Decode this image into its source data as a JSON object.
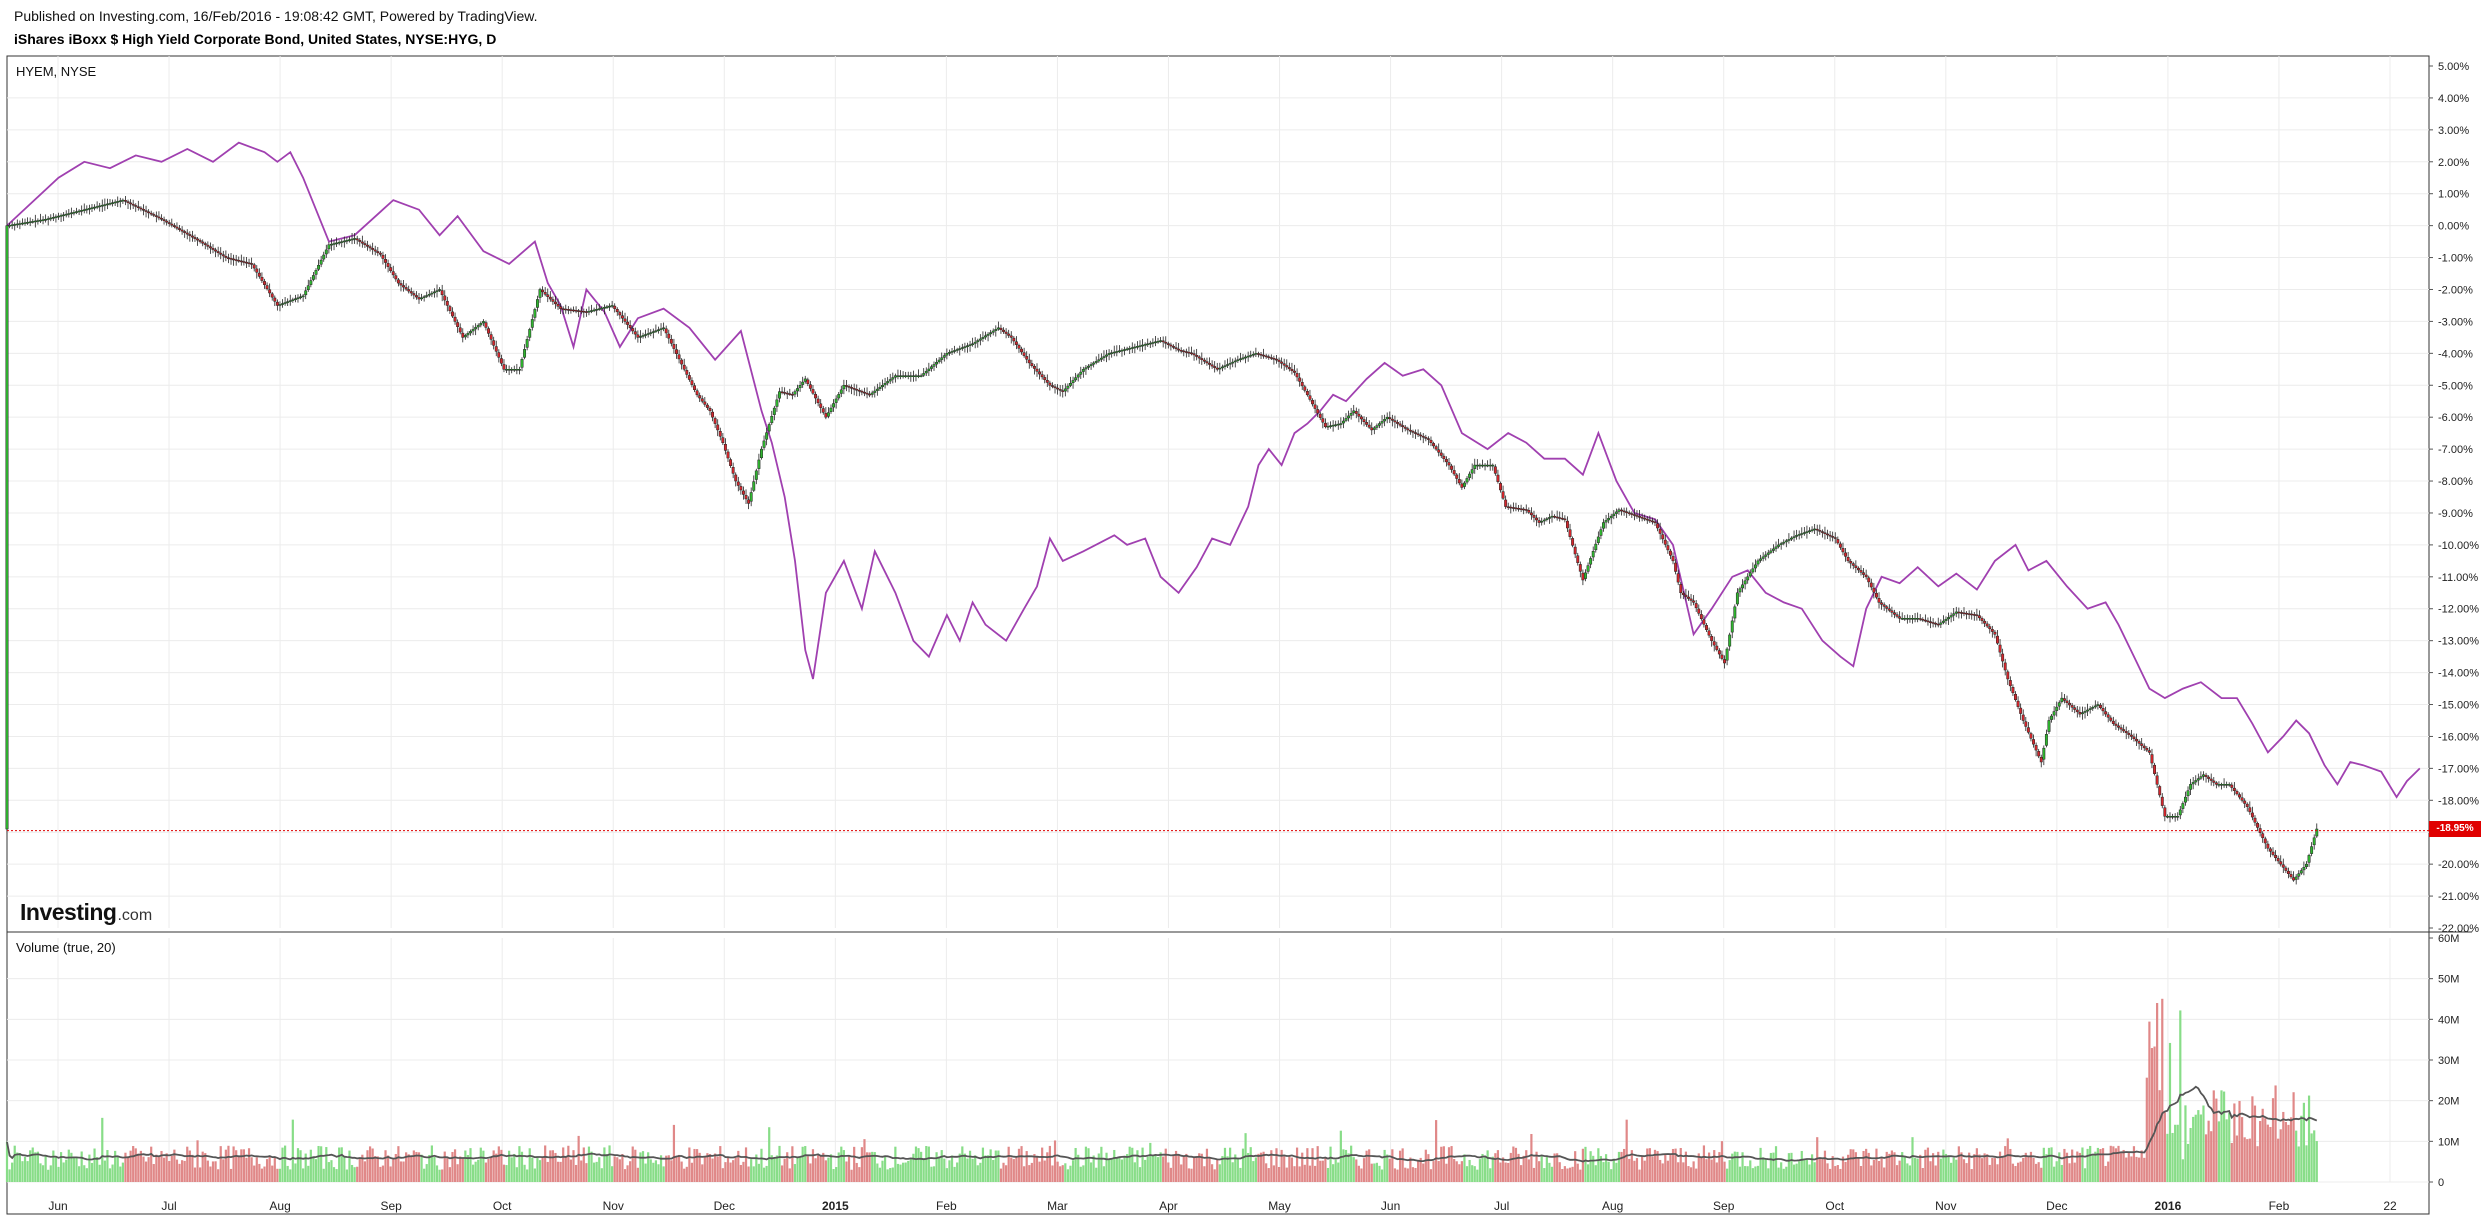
{
  "header": {
    "published": "Published on Investing.com, 16/Feb/2016 - 19:08:42 GMT, Powered by TradingView.",
    "title": "iShares iBoxx $ High Yield Corporate Bond, United States, NYSE:HYG, D"
  },
  "main_pane": {
    "symbol_label": "HYEM, NYSE",
    "current_value_label": "-18.95%"
  },
  "volume_pane": {
    "label": "Volume (true, 20)"
  },
  "logo": {
    "text": "Investing",
    "suffix": ".com"
  },
  "colors": {
    "up": "#2fb52f",
    "down": "#d4262c",
    "comparison_line": "#a040b0",
    "vol_up": "#88dd88",
    "vol_down": "#e08888",
    "volume_ma": "#555555",
    "price_line": "#e00000"
  },
  "chart_data": [
    {
      "type": "line",
      "title": "iShares iBoxx $ High Yield Corporate Bond, United States, NYSE:HYG, D",
      "y_unit": "%",
      "ylim": [
        -22,
        5
      ],
      "y_ticks": [
        "5.00%",
        "4.00%",
        "3.00%",
        "2.00%",
        "1.00%",
        "0.00%",
        "-1.00%",
        "-2.00%",
        "-3.00%",
        "-4.00%",
        "-5.00%",
        "-6.00%",
        "-7.00%",
        "-8.00%",
        "-9.00%",
        "-10.00%",
        "-11.00%",
        "-12.00%",
        "-13.00%",
        "-14.00%",
        "-15.00%",
        "-16.00%",
        "-17.00%",
        "-18.00%",
        "-19.00%",
        "-20.00%",
        "-21.00%",
        "-22.00%"
      ],
      "x_ticks": [
        "Jun",
        "Jul",
        "Aug",
        "Sep",
        "Oct",
        "Nov",
        "Dec",
        "2015",
        "Feb",
        "Mar",
        "Apr",
        "May",
        "Jun",
        "Jul",
        "Aug",
        "Sep",
        "Oct",
        "Nov",
        "Dec",
        "2016",
        "Feb",
        "22"
      ],
      "grid": true,
      "current_value": -18.95,
      "series": [
        {
          "name": "HYEM, NYSE",
          "style": "line",
          "points": [
            [
              0,
              0.0
            ],
            [
              20,
              1.5
            ],
            [
              30,
              2.0
            ],
            [
              40,
              1.8
            ],
            [
              50,
              2.2
            ],
            [
              60,
              2.0
            ],
            [
              70,
              2.4
            ],
            [
              80,
              2.0
            ],
            [
              90,
              2.6
            ],
            [
              100,
              2.3
            ],
            [
              105,
              2.0
            ],
            [
              110,
              2.3
            ],
            [
              115,
              1.5
            ],
            [
              125,
              -0.5
            ],
            [
              135,
              -0.3
            ],
            [
              150,
              0.8
            ],
            [
              160,
              0.5
            ],
            [
              168,
              -0.3
            ],
            [
              175,
              0.3
            ],
            [
              185,
              -0.8
            ],
            [
              195,
              -1.2
            ],
            [
              205,
              -0.5
            ],
            [
              210,
              -1.8
            ],
            [
              215,
              -2.5
            ],
            [
              220,
              -3.8
            ],
            [
              225,
              -2.0
            ],
            [
              232,
              -2.7
            ],
            [
              238,
              -3.8
            ],
            [
              245,
              -2.9
            ],
            [
              255,
              -2.6
            ],
            [
              265,
              -3.2
            ],
            [
              275,
              -4.2
            ],
            [
              285,
              -3.3
            ],
            [
              293,
              -5.8
            ],
            [
              297,
              -6.8
            ],
            [
              302,
              -8.5
            ],
            [
              306,
              -10.5
            ],
            [
              310,
              -13.3
            ],
            [
              313,
              -14.2
            ],
            [
              318,
              -11.5
            ],
            [
              325,
              -10.5
            ],
            [
              332,
              -12.0
            ],
            [
              337,
              -10.2
            ],
            [
              345,
              -11.5
            ],
            [
              352,
              -13.0
            ],
            [
              358,
              -13.5
            ],
            [
              365,
              -12.2
            ],
            [
              370,
              -13.0
            ],
            [
              375,
              -11.8
            ],
            [
              380,
              -12.5
            ],
            [
              388,
              -13.0
            ],
            [
              395,
              -12.0
            ],
            [
              400,
              -11.3
            ],
            [
              405,
              -9.8
            ],
            [
              410,
              -10.5
            ],
            [
              418,
              -10.2
            ],
            [
              430,
              -9.7
            ],
            [
              435,
              -10.0
            ],
            [
              442,
              -9.8
            ],
            [
              448,
              -11.0
            ],
            [
              455,
              -11.5
            ],
            [
              462,
              -10.7
            ],
            [
              468,
              -9.8
            ],
            [
              475,
              -10.0
            ],
            [
              482,
              -8.8
            ],
            [
              486,
              -7.5
            ],
            [
              490,
              -7.0
            ],
            [
              495,
              -7.5
            ],
            [
              500,
              -6.5
            ],
            [
              505,
              -6.2
            ],
            [
              510,
              -5.8
            ],
            [
              515,
              -5.3
            ],
            [
              520,
              -5.5
            ],
            [
              528,
              -4.8
            ],
            [
              535,
              -4.3
            ],
            [
              542,
              -4.7
            ],
            [
              550,
              -4.5
            ],
            [
              557,
              -5.0
            ],
            [
              565,
              -6.5
            ],
            [
              575,
              -7.0
            ],
            [
              583,
              -6.5
            ],
            [
              590,
              -6.8
            ],
            [
              597,
              -7.3
            ],
            [
              605,
              -7.3
            ],
            [
              612,
              -7.8
            ],
            [
              618,
              -6.5
            ],
            [
              625,
              -8.0
            ],
            [
              632,
              -9.0
            ],
            [
              640,
              -9.2
            ],
            [
              647,
              -10.0
            ],
            [
              655,
              -12.8
            ],
            [
              662,
              -12.0
            ],
            [
              670,
              -11.0
            ],
            [
              676,
              -10.8
            ],
            [
              683,
              -11.5
            ],
            [
              690,
              -11.8
            ],
            [
              697,
              -12.0
            ],
            [
              705,
              -13.0
            ],
            [
              712,
              -13.5
            ],
            [
              717,
              -13.8
            ],
            [
              722,
              -12.0
            ],
            [
              728,
              -11.0
            ],
            [
              735,
              -11.2
            ],
            [
              742,
              -10.7
            ],
            [
              750,
              -11.3
            ],
            [
              757,
              -10.9
            ],
            [
              765,
              -11.4
            ],
            [
              772,
              -10.5
            ],
            [
              780,
              -10.0
            ],
            [
              785,
              -10.8
            ],
            [
              792,
              -10.5
            ],
            [
              800,
              -11.3
            ],
            [
              808,
              -12.0
            ],
            [
              815,
              -11.8
            ],
            [
              820,
              -12.5
            ],
            [
              826,
              -13.5
            ],
            [
              832,
              -14.5
            ],
            [
              838,
              -14.8
            ],
            [
              845,
              -14.5
            ],
            [
              852,
              -14.3
            ],
            [
              860,
              -14.8
            ],
            [
              866,
              -14.8
            ],
            [
              872,
              -15.6
            ],
            [
              878,
              -16.5
            ],
            [
              884,
              -16.0
            ],
            [
              889,
              -15.5
            ],
            [
              894,
              -15.9
            ],
            [
              900,
              -16.9
            ],
            [
              905,
              -17.5
            ],
            [
              910,
              -16.8
            ],
            [
              915,
              -16.9
            ],
            [
              922,
              -17.1
            ],
            [
              928,
              -17.9
            ],
            [
              932,
              -17.4
            ],
            [
              937,
              -17.0
            ]
          ]
        },
        {
          "name": "NYSE:HYG",
          "style": "candles",
          "points": [
            [
              0,
              0.0
            ],
            [
              15,
              0.2
            ],
            [
              30,
              0.5
            ],
            [
              45,
              0.8
            ],
            [
              60,
              0.2
            ],
            [
              75,
              -0.5
            ],
            [
              85,
              -1.0
            ],
            [
              95,
              -1.2
            ],
            [
              105,
              -2.5
            ],
            [
              115,
              -2.2
            ],
            [
              125,
              -0.6
            ],
            [
              135,
              -0.4
            ],
            [
              145,
              -0.9
            ],
            [
              152,
              -1.8
            ],
            [
              160,
              -2.3
            ],
            [
              168,
              -2.0
            ],
            [
              177,
              -3.5
            ],
            [
              185,
              -3.0
            ],
            [
              193,
              -4.5
            ],
            [
              199,
              -4.5
            ],
            [
              207,
              -2.0
            ],
            [
              215,
              -2.6
            ],
            [
              225,
              -2.7
            ],
            [
              235,
              -2.5
            ],
            [
              245,
              -3.5
            ],
            [
              255,
              -3.2
            ],
            [
              263,
              -4.5
            ],
            [
              268,
              -5.3
            ],
            [
              273,
              -5.8
            ],
            [
              278,
              -6.8
            ],
            [
              283,
              -8.0
            ],
            [
              288,
              -8.7
            ],
            [
              293,
              -7.0
            ],
            [
              300,
              -5.2
            ],
            [
              305,
              -5.3
            ],
            [
              310,
              -4.8
            ],
            [
              318,
              -6.0
            ],
            [
              325,
              -5.0
            ],
            [
              335,
              -5.3
            ],
            [
              345,
              -4.7
            ],
            [
              355,
              -4.7
            ],
            [
              365,
              -4.0
            ],
            [
              375,
              -3.7
            ],
            [
              385,
              -3.2
            ],
            [
              390,
              -3.5
            ],
            [
              397,
              -4.3
            ],
            [
              405,
              -5.0
            ],
            [
              410,
              -5.2
            ],
            [
              418,
              -4.5
            ],
            [
              428,
              -4.0
            ],
            [
              438,
              -3.8
            ],
            [
              448,
              -3.6
            ],
            [
              455,
              -3.9
            ],
            [
              460,
              -4.0
            ],
            [
              470,
              -4.5
            ],
            [
              478,
              -4.2
            ],
            [
              485,
              -4.0
            ],
            [
              493,
              -4.2
            ],
            [
              500,
              -4.6
            ],
            [
              505,
              -5.3
            ],
            [
              512,
              -6.3
            ],
            [
              518,
              -6.2
            ],
            [
              523,
              -5.8
            ],
            [
              530,
              -6.4
            ],
            [
              536,
              -6.0
            ],
            [
              544,
              -6.4
            ],
            [
              552,
              -6.7
            ],
            [
              560,
              -7.5
            ],
            [
              565,
              -8.2
            ],
            [
              570,
              -7.5
            ],
            [
              577,
              -7.5
            ],
            [
              582,
              -8.8
            ],
            [
              590,
              -8.9
            ],
            [
              595,
              -9.3
            ],
            [
              600,
              -9.1
            ],
            [
              605,
              -9.2
            ],
            [
              612,
              -11.1
            ],
            [
              620,
              -9.3
            ],
            [
              626,
              -8.9
            ],
            [
              633,
              -9.1
            ],
            [
              640,
              -9.3
            ],
            [
              647,
              -10.5
            ],
            [
              650,
              -11.5
            ],
            [
              655,
              -11.8
            ],
            [
              662,
              -13.0
            ],
            [
              667,
              -13.7
            ],
            [
              672,
              -11.5
            ],
            [
              680,
              -10.5
            ],
            [
              688,
              -10.0
            ],
            [
              695,
              -9.7
            ],
            [
              702,
              -9.5
            ],
            [
              710,
              -9.8
            ],
            [
              715,
              -10.5
            ],
            [
              722,
              -11.0
            ],
            [
              727,
              -11.8
            ],
            [
              735,
              -12.3
            ],
            [
              742,
              -12.3
            ],
            [
              750,
              -12.5
            ],
            [
              757,
              -12.1
            ],
            [
              765,
              -12.2
            ],
            [
              772,
              -12.8
            ],
            [
              777,
              -14.2
            ],
            [
              783,
              -15.5
            ],
            [
              790,
              -16.8
            ],
            [
              793,
              -15.5
            ],
            [
              798,
              -14.8
            ],
            [
              805,
              -15.3
            ],
            [
              812,
              -15.0
            ],
            [
              818,
              -15.6
            ],
            [
              825,
              -16.0
            ],
            [
              832,
              -16.5
            ],
            [
              838,
              -18.5
            ],
            [
              843,
              -18.5
            ],
            [
              848,
              -17.5
            ],
            [
              853,
              -17.2
            ],
            [
              858,
              -17.5
            ],
            [
              863,
              -17.5
            ],
            [
              870,
              -18.2
            ],
            [
              878,
              -19.5
            ],
            [
              883,
              -20.0
            ],
            [
              888,
              -20.5
            ],
            [
              893,
              -20.0
            ],
            [
              897,
              -18.9
            ]
          ]
        }
      ]
    },
    {
      "type": "bar",
      "title": "Volume (true, 20)",
      "ylim": [
        0,
        60
      ],
      "y_unit": "M",
      "y_ticks": [
        "60M",
        "50M",
        "40M",
        "30M",
        "20M",
        "10M",
        "0"
      ],
      "series": [
        {
          "name": "Volume",
          "values": []
        },
        {
          "name": "MA 20",
          "style": "line",
          "values": []
        }
      ]
    }
  ]
}
